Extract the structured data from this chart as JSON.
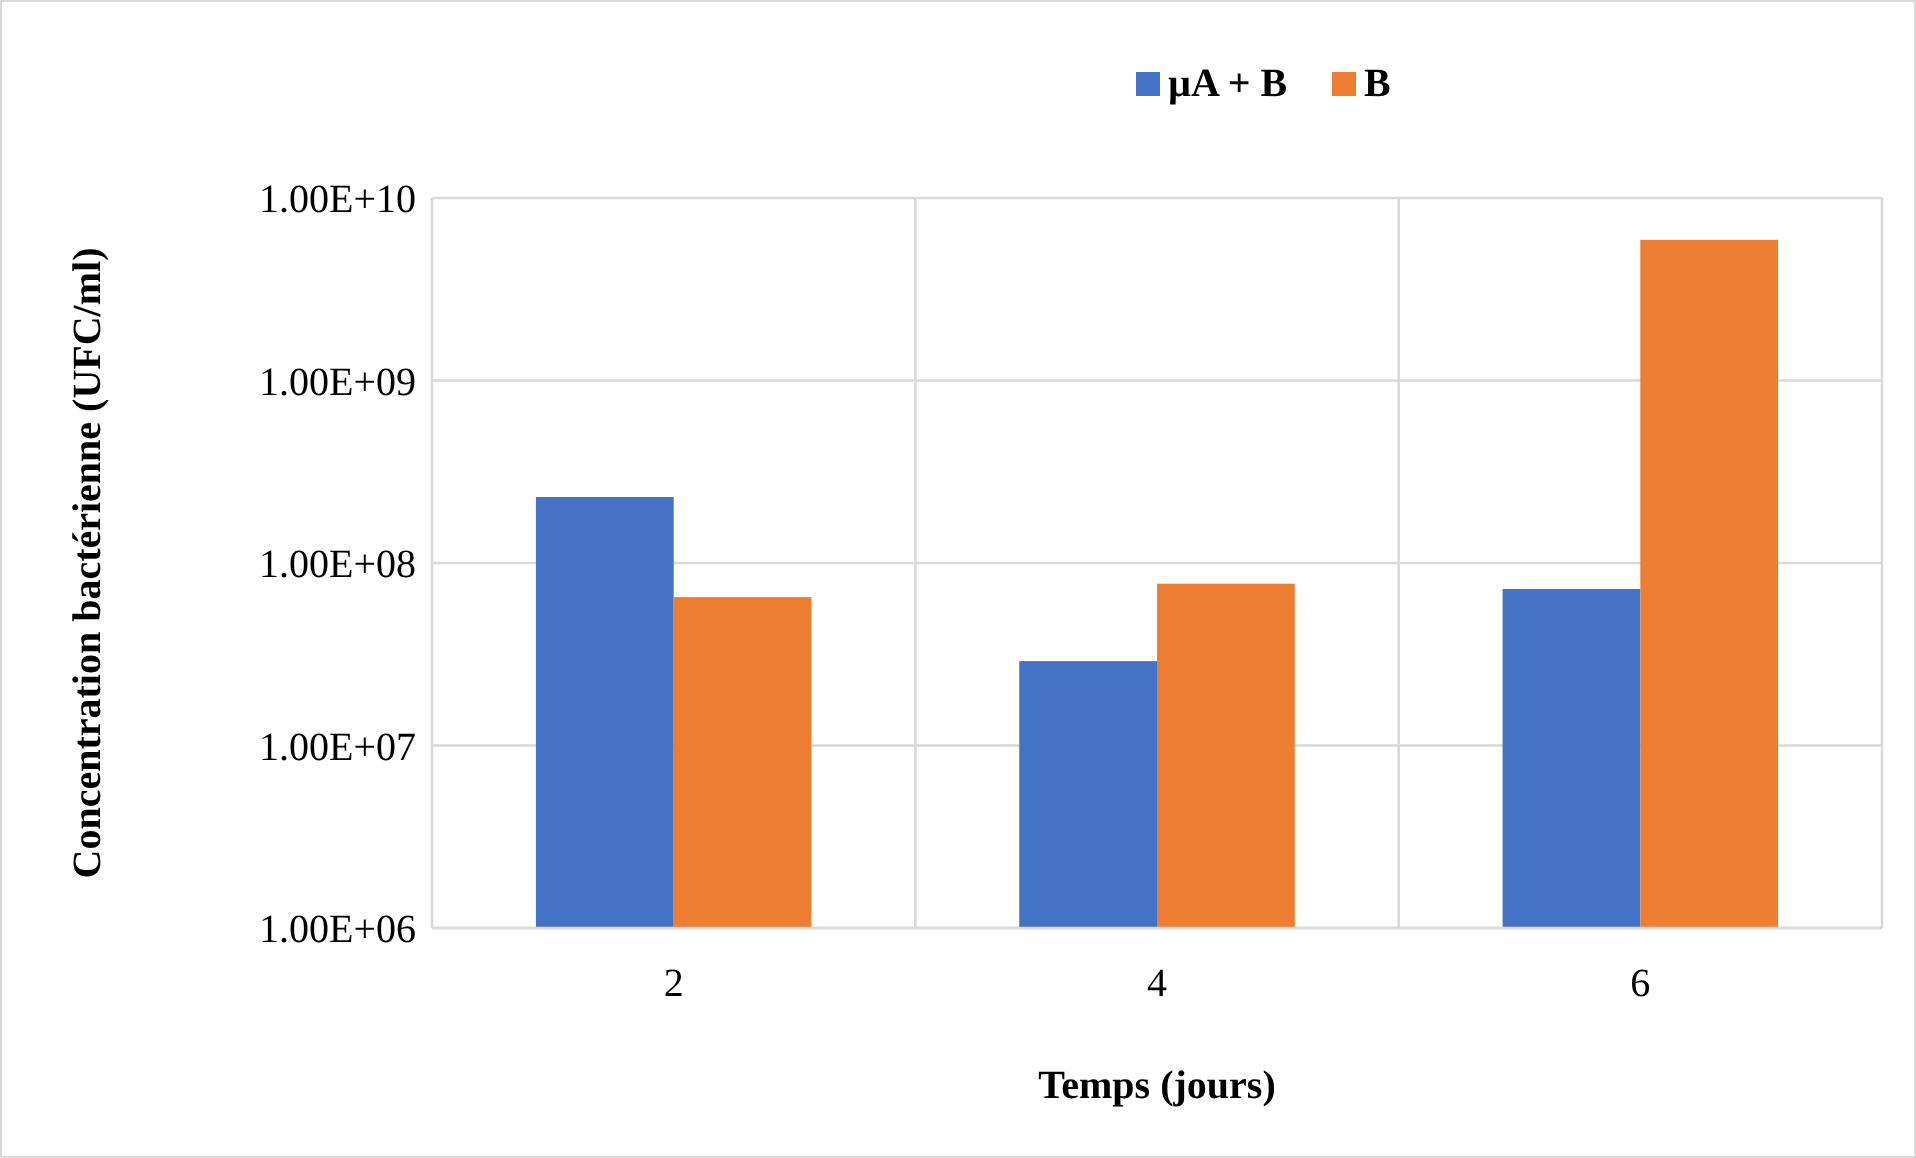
{
  "chart_data": {
    "type": "bar",
    "xlabel": "Temps (jours)",
    "ylabel": "Concentration bactérienne (UFC/ml)",
    "categories": [
      "2",
      "4",
      "6"
    ],
    "series": [
      {
        "name": "µA + B",
        "color": "#4472c4",
        "values": [
          230000000,
          29000000,
          72000000
        ]
      },
      {
        "name": "B",
        "color": "#ed7d31",
        "values": [
          65000000,
          77000000,
          5900000000
        ]
      }
    ],
    "log": "y",
    "ylim": [
      1000000,
      10000000000
    ],
    "yticks": [
      {
        "value": 1000000,
        "label": "1.00E+06"
      },
      {
        "value": 10000000,
        "label": "1.00E+07"
      },
      {
        "value": 100000000,
        "label": "1.00E+08"
      },
      {
        "value": 1000000000,
        "label": "1.00E+09"
      },
      {
        "value": 10000000000,
        "label": "1.00E+10"
      }
    ],
    "grid": true,
    "legend": "top"
  }
}
